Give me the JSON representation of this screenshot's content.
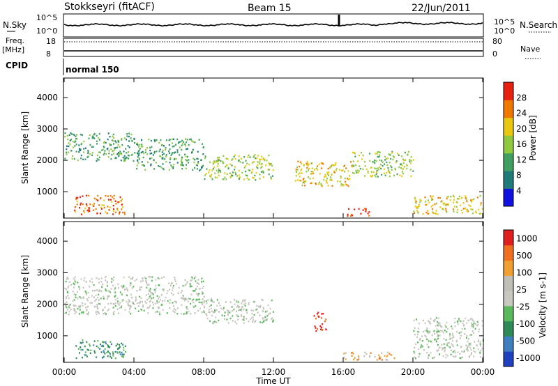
{
  "header": {
    "station": "Stokkseyri (fitACF)",
    "beam": "Beam 15",
    "date": "22/Jun/2011"
  },
  "strips": {
    "nsky_label": "N.Sky",
    "nsearch_label": "N.Search",
    "noise_ticks": [
      "10^5",
      "10^0"
    ],
    "freq_label": "Freq.",
    "freq_unit": "[MHz]",
    "freq_ticks": [
      "18",
      "8"
    ],
    "nave_label": "Nave",
    "nave_ticks": [
      "80",
      "0"
    ],
    "cpid_label": "CPID",
    "cpid_value": "normal 150"
  },
  "x_ticks": [
    "00:00",
    "04:00",
    "08:00",
    "12:00",
    "16:00",
    "20:00",
    "00:00"
  ],
  "xlabel": "Time UT",
  "ylabel": "Slant Range [km]",
  "y_ticks": [
    "1000",
    "2000",
    "3000",
    "4000"
  ],
  "chart_data": [
    {
      "type": "heatmap",
      "title": "",
      "xlabel": "Time UT",
      "ylabel": "Slant Range [km]",
      "xlim": [
        0,
        24
      ],
      "ylim": [
        180,
        4600
      ],
      "colorbar_label": "Power [dB]",
      "colorbar_ticks": [
        4,
        8,
        12,
        16,
        20,
        24,
        28
      ],
      "colors": [
        "#1010e0",
        "#207a7a",
        "#40a060",
        "#90c840",
        "#e8c810",
        "#f07800",
        "#e82010"
      ],
      "regions": [
        {
          "t": [
            0.0,
            4.0
          ],
          "r": [
            2000,
            2900
          ],
          "level": 2
        },
        {
          "t": [
            4.0,
            8.0
          ],
          "r": [
            1700,
            2700
          ],
          "level": 2
        },
        {
          "t": [
            8.0,
            12.0
          ],
          "r": [
            1400,
            2200
          ],
          "level": 3
        },
        {
          "t": [
            0.5,
            3.5
          ],
          "r": [
            300,
            900
          ],
          "level": 5
        },
        {
          "t": [
            13.2,
            16.5
          ],
          "r": [
            1200,
            2000
          ],
          "level": 4
        },
        {
          "t": [
            16.5,
            20.0
          ],
          "r": [
            1500,
            2300
          ],
          "level": 3
        },
        {
          "t": [
            16.2,
            17.6
          ],
          "r": [
            250,
            500
          ],
          "level": 6
        },
        {
          "t": [
            20.0,
            24.0
          ],
          "r": [
            300,
            900
          ],
          "level": 4
        }
      ]
    },
    {
      "type": "heatmap",
      "title": "",
      "xlabel": "Time UT",
      "ylabel": "Slant Range [km]",
      "xlim": [
        0,
        24
      ],
      "ylim": [
        180,
        4600
      ],
      "colorbar_label": "Velocity [m s-1]",
      "colorbar_ticks": [
        1000,
        500,
        100,
        25,
        -25,
        -100,
        -500,
        -1000
      ],
      "colors": [
        "#2040c0",
        "#3f7fbf",
        "#2e8b57",
        "#5cb85c",
        "#c8c8c0",
        "#bfbfb8",
        "#f0a030",
        "#f07020",
        "#e02020"
      ],
      "regions": [
        {
          "t": [
            0.0,
            8.0
          ],
          "r": [
            1700,
            2900
          ],
          "level": 4
        },
        {
          "t": [
            8.0,
            12.0
          ],
          "r": [
            1400,
            2200
          ],
          "level": 4
        },
        {
          "t": [
            0.5,
            3.5
          ],
          "r": [
            300,
            900
          ],
          "level": 2
        },
        {
          "t": [
            14.3,
            15.0
          ],
          "r": [
            1100,
            1800
          ],
          "level": 8
        },
        {
          "t": [
            16.0,
            19.0
          ],
          "r": [
            250,
            500
          ],
          "level": 6
        },
        {
          "t": [
            20.0,
            24.0
          ],
          "r": [
            300,
            1600
          ],
          "level": 4
        }
      ]
    }
  ]
}
